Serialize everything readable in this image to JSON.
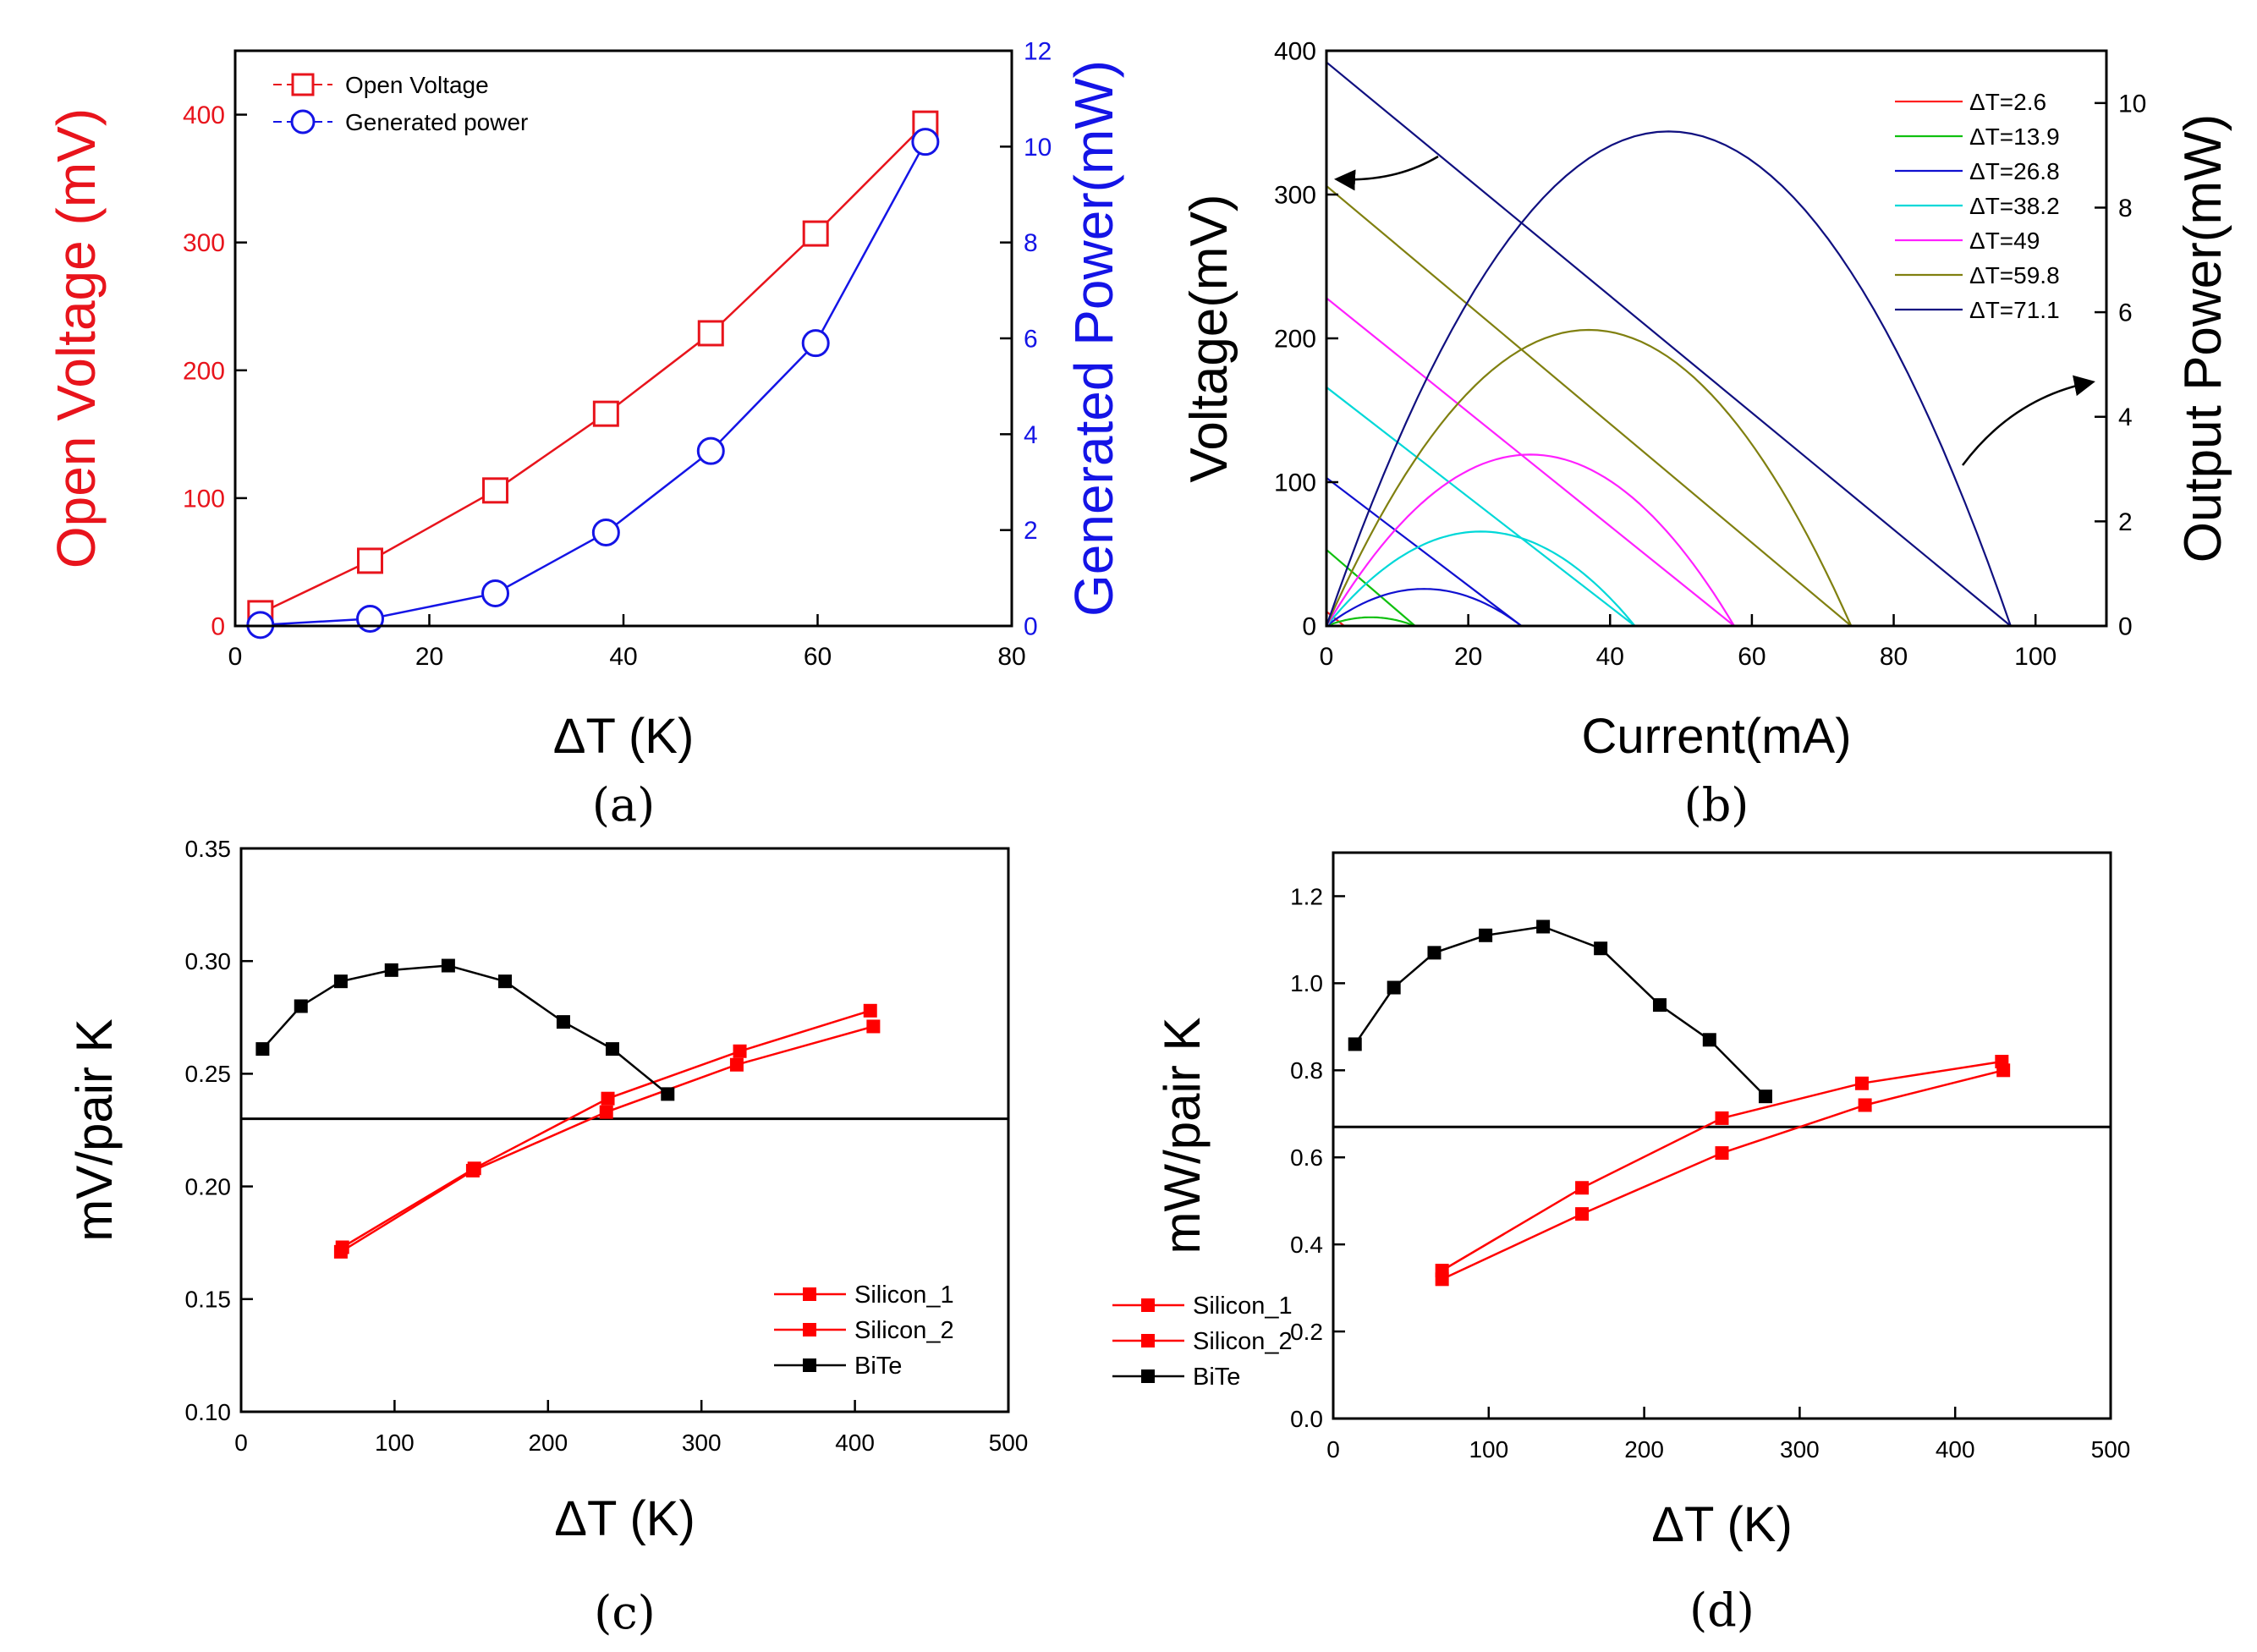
{
  "chart_data": [
    {
      "id": "a",
      "type": "line",
      "caption": "(a)",
      "xlabel": "ΔT (K)",
      "ylabel": "Open Voltage (mV)",
      "ylabel_right": "Generated Power(mW)",
      "xlim": [
        0,
        80
      ],
      "ylim": [
        0,
        450
      ],
      "ylim_right": [
        0,
        12
      ],
      "xticks": [
        0,
        20,
        40,
        60,
        80
      ],
      "yticks": [
        0,
        100,
        200,
        300,
        400
      ],
      "yticks_right": [
        0,
        2,
        4,
        6,
        8,
        10,
        12
      ],
      "legend_position": "top-left",
      "colors": {
        "voltage": "#e8141c",
        "power": "#1414e6"
      },
      "series": [
        {
          "name": "Open Voltage",
          "axis": "left",
          "marker": "square",
          "x": [
            2.6,
            13.9,
            26.8,
            38.2,
            49,
            59.8,
            71.1
          ],
          "y": [
            10,
            51,
            106,
            166,
            229,
            307,
            393
          ]
        },
        {
          "name": "Generated power",
          "axis": "right",
          "marker": "circle",
          "x": [
            2.6,
            13.9,
            26.8,
            38.2,
            49,
            59.8,
            71.1
          ],
          "y": [
            0.02,
            0.15,
            0.68,
            1.95,
            3.65,
            5.9,
            10.1
          ]
        }
      ]
    },
    {
      "id": "b",
      "type": "line",
      "caption": "(b)",
      "xlabel": "Current(mA)",
      "ylabel": "Voltage(mV)",
      "ylabel_right": "Output Power(mW)",
      "xlim": [
        0,
        110
      ],
      "ylim": [
        0,
        400
      ],
      "ylim_right": [
        0,
        11
      ],
      "xticks": [
        0,
        20,
        40,
        60,
        80,
        100
      ],
      "yticks": [
        0,
        100,
        200,
        300,
        400
      ],
      "yticks_right": [
        0,
        2,
        4,
        6,
        8,
        10
      ],
      "legend_position": "top-right",
      "series": [
        {
          "name": "ΔT=2.6",
          "color": "#ff2020",
          "voc": 10,
          "isc": 2.5
        },
        {
          "name": "ΔT=13.9",
          "color": "#10c010",
          "voc": 53,
          "isc": 12.5
        },
        {
          "name": "ΔT=26.8",
          "color": "#1010d0",
          "voc": 103,
          "isc": 27.5
        },
        {
          "name": "ΔT=38.2",
          "color": "#00d8d8",
          "voc": 166,
          "isc": 43.5
        },
        {
          "name": "ΔT=49",
          "color": "#ff20ff",
          "voc": 228,
          "isc": 57.5
        },
        {
          "name": "ΔT=59.8",
          "color": "#808010",
          "voc": 306,
          "isc": 74
        },
        {
          "name": "ΔT=71.1",
          "color": "#101080",
          "voc": 392,
          "isc": 96.5
        }
      ]
    },
    {
      "id": "c",
      "type": "line",
      "caption": "(c)",
      "xlabel": "ΔT (K)",
      "ylabel": "mV/pair K",
      "xlim": [
        0,
        500
      ],
      "ylim": [
        0.1,
        0.35
      ],
      "xticks": [
        0,
        100,
        200,
        300,
        400,
        500
      ],
      "yticks": [
        "0.10",
        "0.15",
        "0.20",
        "0.25",
        "0.30",
        "0.35"
      ],
      "reference_line": 0.23,
      "legend_position": "bottom-right",
      "series": [
        {
          "name": "Silicon_1",
          "color": "#ff0000",
          "x": [
            66,
            152,
            239,
            325,
            410
          ],
          "y": [
            0.173,
            0.208,
            0.239,
            0.26,
            0.278
          ]
        },
        {
          "name": "Silicon_2",
          "color": "#ff0000",
          "x": [
            65,
            151,
            238,
            323,
            412
          ],
          "y": [
            0.171,
            0.207,
            0.233,
            0.254,
            0.271
          ]
        },
        {
          "name": "BiTe",
          "color": "#000000",
          "x": [
            14,
            39,
            65,
            98,
            135,
            172,
            210,
            242,
            278
          ],
          "y": [
            0.261,
            0.28,
            0.291,
            0.296,
            0.298,
            0.291,
            0.273,
            0.261,
            0.241
          ]
        }
      ]
    },
    {
      "id": "d",
      "type": "line",
      "caption": "(d)",
      "xlabel": "ΔT (K)",
      "ylabel": "mW/pair K",
      "xlim": [
        0,
        500
      ],
      "ylim": [
        0.0,
        1.3
      ],
      "xticks": [
        0,
        100,
        200,
        300,
        400,
        500
      ],
      "yticks": [
        "0.0",
        "0.2",
        "0.4",
        "0.6",
        "0.8",
        "1.0",
        "1.2"
      ],
      "reference_line": 0.67,
      "legend_position": "bottom-right",
      "series": [
        {
          "name": "Silicon_1",
          "color": "#ff0000",
          "x": [
            70,
            160,
            250,
            340,
            430
          ],
          "y": [
            0.34,
            0.53,
            0.69,
            0.77,
            0.82
          ]
        },
        {
          "name": "Silicon_2",
          "color": "#ff0000",
          "x": [
            70,
            160,
            250,
            342,
            431
          ],
          "y": [
            0.32,
            0.47,
            0.61,
            0.72,
            0.8
          ]
        },
        {
          "name": "BiTe",
          "color": "#000000",
          "x": [
            14,
            39,
            65,
            98,
            135,
            172,
            210,
            242,
            278
          ],
          "y": [
            0.86,
            0.99,
            1.07,
            1.11,
            1.13,
            1.08,
            0.95,
            0.87,
            0.74
          ]
        }
      ]
    }
  ]
}
